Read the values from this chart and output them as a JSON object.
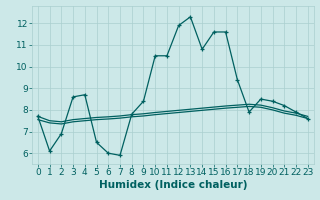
{
  "xlabel": "Humidex (Indice chaleur)",
  "ylabel": "",
  "bg_color": "#cce8e8",
  "line_color": "#006060",
  "grid_color": "#aacfcf",
  "x_ticks": [
    0,
    1,
    2,
    3,
    4,
    5,
    6,
    7,
    8,
    9,
    10,
    11,
    12,
    13,
    14,
    15,
    16,
    17,
    18,
    19,
    20,
    21,
    22,
    23
  ],
  "y_ticks": [
    6,
    7,
    8,
    9,
    10,
    11,
    12
  ],
  "xlim": [
    -0.5,
    23.5
  ],
  "ylim": [
    5.5,
    12.8
  ],
  "series1_x": [
    0,
    1,
    2,
    3,
    4,
    5,
    6,
    7,
    8,
    9,
    10,
    11,
    12,
    13,
    14,
    15,
    16,
    17,
    18,
    19,
    20,
    21,
    22,
    23
  ],
  "series1_y": [
    7.7,
    6.1,
    6.9,
    8.6,
    8.7,
    6.5,
    6.0,
    5.9,
    7.8,
    8.4,
    10.5,
    10.5,
    11.9,
    12.3,
    10.8,
    11.6,
    11.6,
    9.4,
    7.9,
    8.5,
    8.4,
    8.2,
    7.9,
    7.6
  ],
  "series2_x": [
    0,
    1,
    2,
    3,
    4,
    5,
    6,
    7,
    8,
    9,
    10,
    11,
    12,
    13,
    14,
    15,
    16,
    17,
    18,
    19,
    20,
    21,
    22,
    23
  ],
  "series2_y": [
    7.55,
    7.4,
    7.35,
    7.45,
    7.5,
    7.55,
    7.58,
    7.62,
    7.68,
    7.72,
    7.78,
    7.83,
    7.88,
    7.93,
    7.98,
    8.03,
    8.08,
    8.12,
    8.16,
    8.12,
    8.0,
    7.85,
    7.75,
    7.6
  ],
  "series3_x": [
    0,
    1,
    2,
    3,
    4,
    5,
    6,
    7,
    8,
    9,
    10,
    11,
    12,
    13,
    14,
    15,
    16,
    17,
    18,
    19,
    20,
    21,
    22,
    23
  ],
  "series3_y": [
    7.7,
    7.5,
    7.45,
    7.55,
    7.6,
    7.65,
    7.68,
    7.72,
    7.78,
    7.82,
    7.88,
    7.93,
    7.98,
    8.03,
    8.08,
    8.13,
    8.18,
    8.22,
    8.26,
    8.22,
    8.1,
    7.95,
    7.85,
    7.7
  ],
  "tick_fontsize": 6.5,
  "label_fontsize": 7.5
}
